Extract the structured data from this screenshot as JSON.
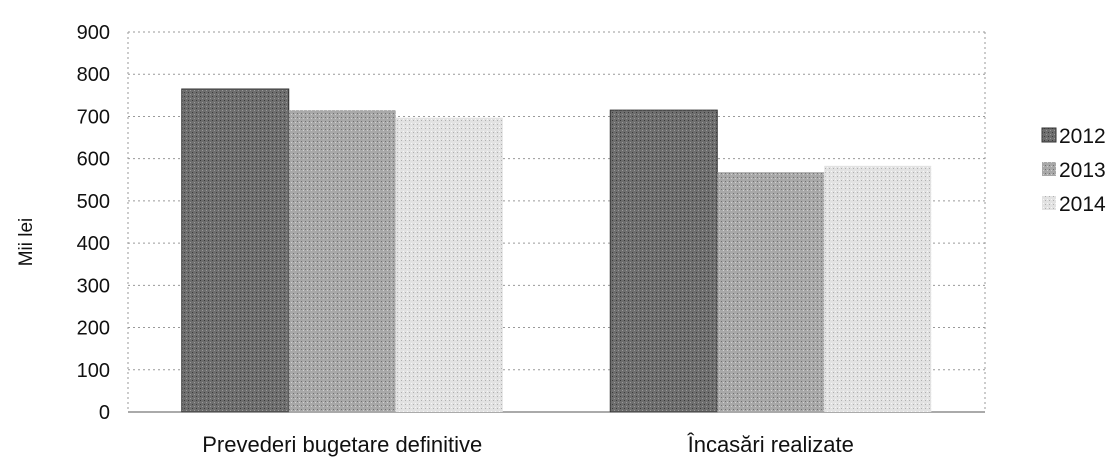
{
  "chart_data": {
    "type": "bar",
    "categories": [
      "Prevederi bugetare definitive",
      "Încasări realizate"
    ],
    "series": [
      {
        "name": "2012",
        "values": [
          765,
          715
        ],
        "color": "#6e6e6e"
      },
      {
        "name": "2013",
        "values": [
          715,
          568
        ],
        "color": "#a8a8a8"
      },
      {
        "name": "2014",
        "values": [
          697,
          583
        ],
        "color": "#d8d8d8"
      }
    ],
    "ylabel": "Mii lei",
    "xlabel": "",
    "ylim": [
      0,
      900
    ],
    "yticks": [
      "0",
      "100",
      "200",
      "300",
      "400",
      "500",
      "600",
      "700",
      "800",
      "900"
    ],
    "grid": true,
    "legend_position": "right"
  }
}
